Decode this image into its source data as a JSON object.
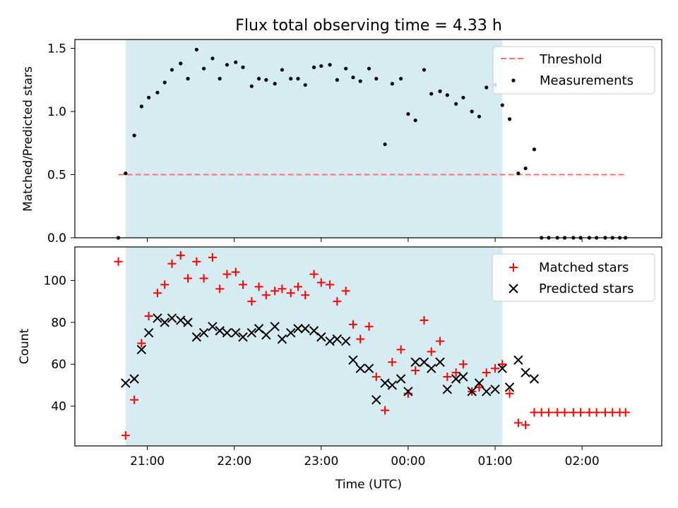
{
  "chart_data": [
    {
      "type": "scatter",
      "title": "Flux total observing time = 4.33 h",
      "ylabel": "Matched/Predicted stars",
      "ylim": [
        0,
        1.57
      ],
      "yticks": [
        0.0,
        0.5,
        1.0,
        1.5
      ],
      "grid": false,
      "legend_position": "top-right",
      "observing_window": [
        "20:45",
        "01:05"
      ],
      "threshold": {
        "name": "Threshold",
        "value": 0.5,
        "x_range": [
          "20:40",
          "02:30"
        ],
        "color": "#ff7070"
      },
      "series": [
        {
          "name": "Measurements",
          "color": "#000000",
          "x": [
            "20:40",
            "20:45",
            "20:51",
            "20:56",
            "21:01",
            "21:07",
            "21:12",
            "21:17",
            "21:23",
            "21:28",
            "21:34",
            "21:39",
            "21:45",
            "21:50",
            "21:55",
            "22:01",
            "22:06",
            "22:12",
            "22:17",
            "22:22",
            "22:28",
            "22:33",
            "22:39",
            "22:44",
            "22:49",
            "22:55",
            "23:00",
            "23:06",
            "23:11",
            "23:17",
            "23:22",
            "23:27",
            "23:33",
            "23:38",
            "23:44",
            "23:49",
            "23:55",
            "00:00",
            "00:05",
            "00:11",
            "00:16",
            "00:22",
            "00:27",
            "00:33",
            "00:38",
            "00:44",
            "00:49",
            "00:54",
            "01:00",
            "01:05",
            "01:10",
            "01:16",
            "01:21",
            "01:27",
            "01:32",
            "01:37",
            "01:43",
            "01:48",
            "01:54",
            "01:59",
            "02:05",
            "02:10",
            "02:16",
            "02:21",
            "02:26",
            "02:30"
          ],
          "y": [
            0.0,
            0.51,
            0.81,
            1.04,
            1.11,
            1.15,
            1.23,
            1.33,
            1.38,
            1.26,
            1.49,
            1.34,
            1.42,
            1.26,
            1.37,
            1.39,
            1.35,
            1.2,
            1.26,
            1.25,
            1.22,
            1.33,
            1.26,
            1.26,
            1.21,
            1.35,
            1.36,
            1.37,
            1.25,
            1.34,
            1.27,
            1.24,
            1.34,
            1.26,
            0.74,
            1.22,
            1.26,
            0.98,
            0.93,
            1.33,
            1.14,
            1.16,
            1.13,
            1.06,
            1.11,
            1.0,
            0.96,
            1.19,
            1.21,
            1.05,
            0.94,
            0.51,
            0.55,
            0.7,
            0.0,
            0.0,
            0.0,
            0.0,
            0.0,
            0.0,
            0.0,
            0.0,
            0.0,
            0.0,
            0.0,
            0.0
          ]
        }
      ]
    },
    {
      "type": "scatter",
      "xlabel": "Time (UTC)",
      "ylabel": "Count",
      "ylim": [
        21,
        116
      ],
      "yticks": [
        40,
        60,
        80,
        100
      ],
      "xticks": [
        "21:00",
        "22:00",
        "23:00",
        "00:00",
        "01:00",
        "02:00"
      ],
      "grid": false,
      "legend_position": "top-right",
      "observing_window": [
        "20:45",
        "01:05"
      ],
      "series": [
        {
          "name": "Matched stars",
          "marker": "+",
          "color": "#ff0000",
          "x": [
            "20:40",
            "20:45",
            "20:51",
            "20:56",
            "21:01",
            "21:07",
            "21:12",
            "21:17",
            "21:23",
            "21:28",
            "21:34",
            "21:39",
            "21:45",
            "21:50",
            "21:55",
            "22:01",
            "22:06",
            "22:12",
            "22:17",
            "22:22",
            "22:28",
            "22:33",
            "22:39",
            "22:44",
            "22:49",
            "22:55",
            "23:00",
            "23:06",
            "23:11",
            "23:17",
            "23:22",
            "23:27",
            "23:33",
            "23:38",
            "23:44",
            "23:49",
            "23:55",
            "00:00",
            "00:05",
            "00:11",
            "00:16",
            "00:22",
            "00:27",
            "00:33",
            "00:38",
            "00:44",
            "00:49",
            "00:54",
            "01:00",
            "01:05",
            "01:10",
            "01:16",
            "01:21",
            "01:27",
            "01:32",
            "01:37",
            "01:43",
            "01:48",
            "01:54",
            "01:59",
            "02:05",
            "02:10",
            "02:16",
            "02:21",
            "02:26",
            "02:30"
          ],
          "y": [
            109,
            26,
            43,
            70,
            83,
            94,
            98,
            108,
            112,
            101,
            109,
            101,
            111,
            96,
            103,
            104,
            98,
            90,
            97,
            93,
            95,
            96,
            94,
            97,
            93,
            103,
            99,
            98,
            90,
            95,
            79,
            72,
            78,
            54,
            38,
            61,
            67,
            46,
            57,
            81,
            66,
            71,
            54,
            56,
            60,
            47,
            49,
            56,
            58,
            60,
            46,
            32,
            31,
            37,
            37,
            37,
            37,
            37,
            37,
            37,
            37,
            37,
            37,
            37,
            37,
            37
          ]
        },
        {
          "name": "Predicted stars",
          "marker": "x",
          "color": "#000000",
          "x": [
            "20:45",
            "20:51",
            "20:56",
            "21:01",
            "21:07",
            "21:12",
            "21:17",
            "21:23",
            "21:28",
            "21:34",
            "21:39",
            "21:45",
            "21:50",
            "21:55",
            "22:01",
            "22:06",
            "22:12",
            "22:17",
            "22:22",
            "22:28",
            "22:33",
            "22:39",
            "22:44",
            "22:49",
            "22:55",
            "23:00",
            "23:06",
            "23:11",
            "23:17",
            "23:22",
            "23:27",
            "23:33",
            "23:38",
            "23:44",
            "23:49",
            "23:55",
            "00:00",
            "00:05",
            "00:11",
            "00:16",
            "00:22",
            "00:27",
            "00:33",
            "00:38",
            "00:44",
            "00:49",
            "00:54",
            "01:00",
            "01:05",
            "01:10",
            "01:16",
            "01:21",
            "01:27"
          ],
          "y": [
            51,
            53,
            67,
            75,
            82,
            80,
            82,
            81,
            80,
            73,
            75,
            78,
            76,
            75,
            75,
            73,
            75,
            77,
            74,
            78,
            72,
            75,
            77,
            77,
            76,
            73,
            71,
            72,
            71,
            62,
            58,
            58,
            43,
            51,
            50,
            53,
            47,
            61,
            61,
            58,
            61,
            48,
            53,
            54,
            47,
            51,
            47,
            48,
            58,
            49,
            62,
            56,
            53
          ]
        }
      ]
    }
  ]
}
